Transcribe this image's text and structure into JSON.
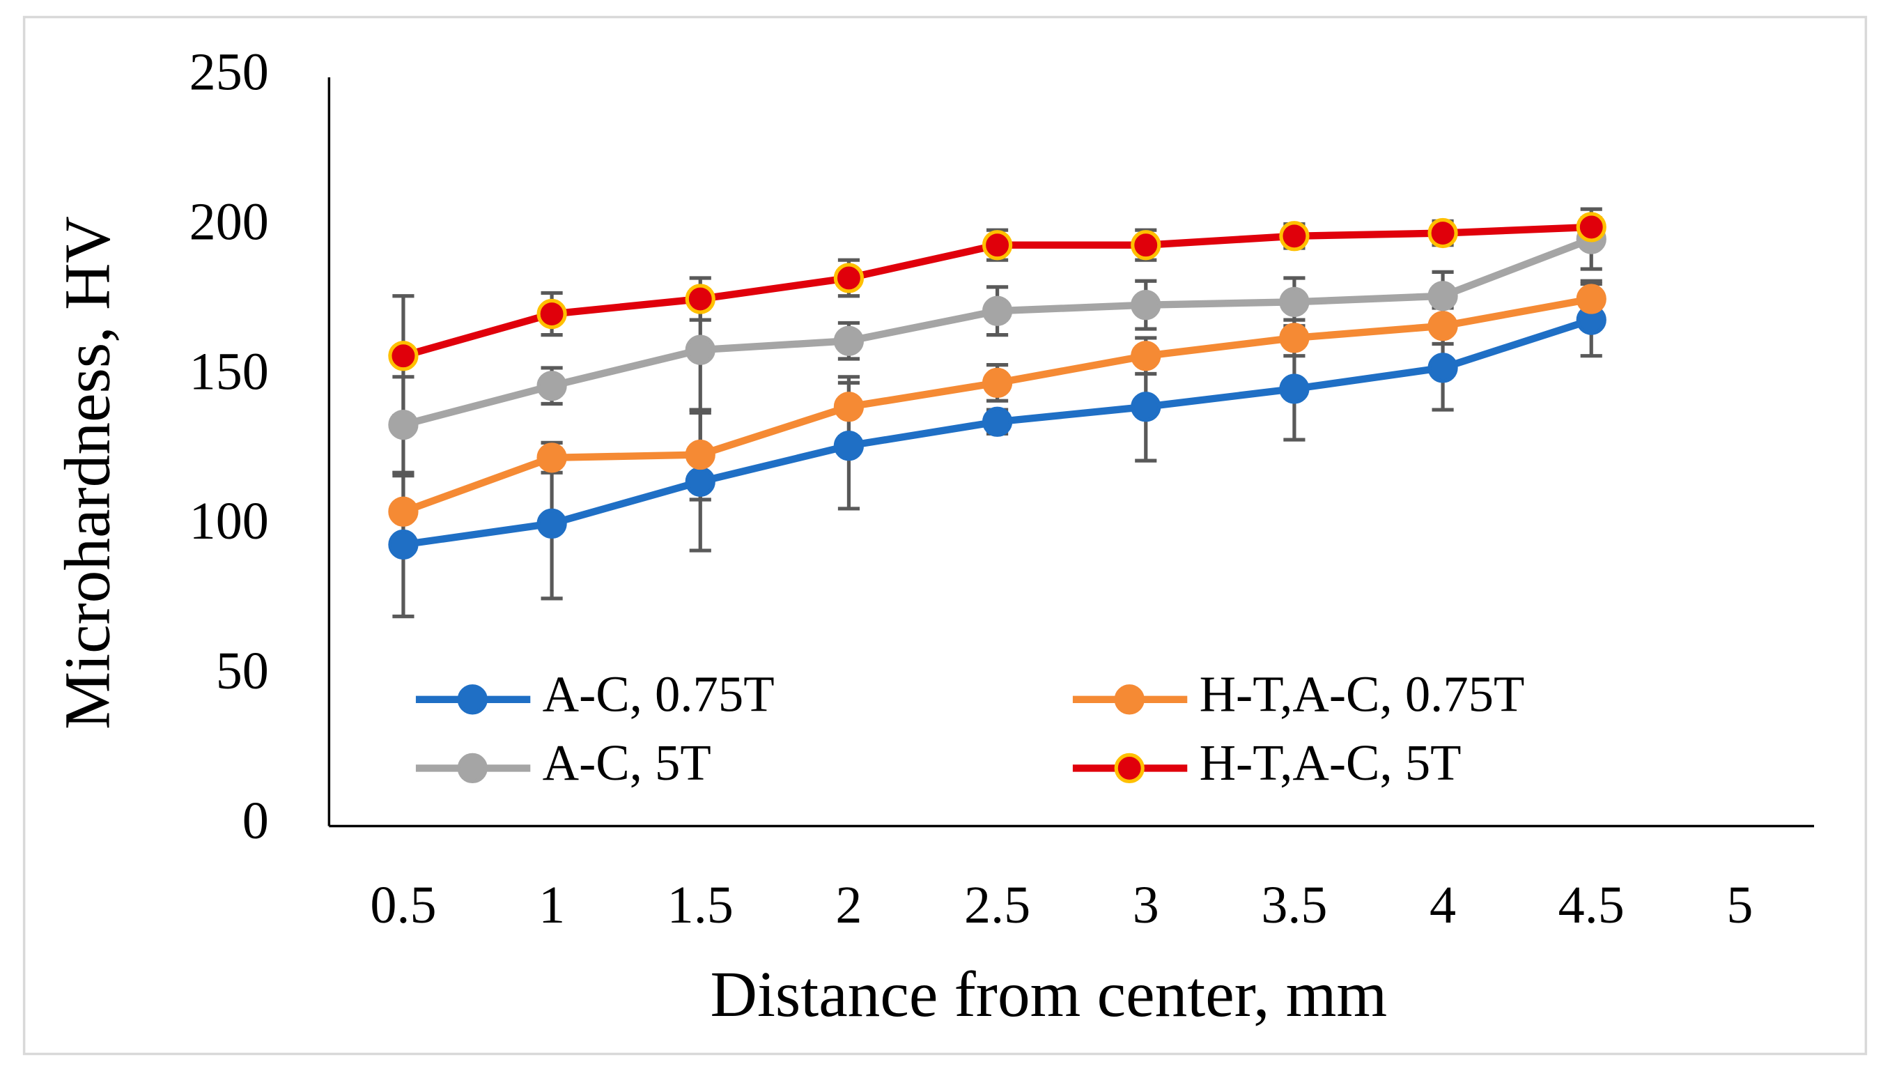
{
  "chart_data": {
    "type": "line",
    "xlabel": "Distance from center, mm",
    "ylabel": "Microhardness, HV",
    "categories": [
      "0.5",
      "1",
      "1.5",
      "2",
      "2.5",
      "3",
      "3.5",
      "4",
      "4.5",
      "5"
    ],
    "ylim": [
      0,
      250
    ],
    "yticks": [
      0,
      50,
      100,
      150,
      200,
      250
    ],
    "grid": false,
    "legend": "bottom",
    "series": [
      {
        "name": "A-C, 0.75T",
        "color": "#1f6fc5",
        "marker_edge": "#1f6fc5",
        "values": [
          94,
          101,
          115,
          127,
          135,
          140,
          146,
          153,
          169,
          null
        ],
        "errors": [
          24,
          25,
          23,
          21,
          4,
          18,
          17,
          14,
          12,
          null
        ]
      },
      {
        "name": "H-T,A-C, 0.75T",
        "color": "#f58a34",
        "marker_edge": "#f58a34",
        "values": [
          105,
          123,
          124,
          140,
          148,
          157,
          163,
          167,
          176,
          null
        ],
        "errors": [
          12,
          5,
          15,
          10,
          6,
          6,
          6,
          6,
          6,
          null
        ]
      },
      {
        "name": "A-C, 5T",
        "color": "#a5a5a5",
        "marker_edge": "#a5a5a5",
        "values": [
          134,
          147,
          159,
          162,
          172,
          174,
          175,
          177,
          196,
          null
        ],
        "errors": [
          16,
          6,
          20,
          6,
          8,
          8,
          8,
          8,
          10,
          null
        ]
      },
      {
        "name": "H-T,A-C, 5T",
        "color": "#e0000b",
        "marker_edge": "#ffc000",
        "values": [
          157,
          171,
          176,
          183,
          194,
          194,
          197,
          198,
          200,
          null
        ],
        "errors": [
          20,
          7,
          7,
          6,
          5,
          5,
          4,
          4,
          3,
          null
        ]
      }
    ]
  }
}
